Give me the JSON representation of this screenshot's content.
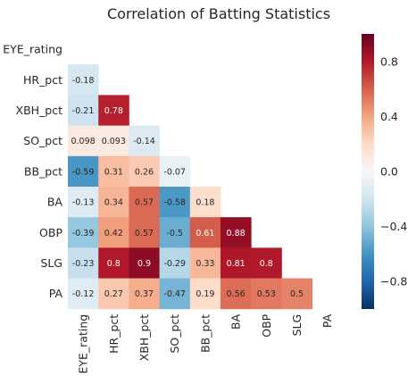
{
  "chart_data": {
    "type": "heatmap",
    "title": "Correlation of Batting Statistics",
    "variables": [
      "EYE_rating",
      "HR_pct",
      "XBH_pct",
      "SO_pct",
      "BB_pct",
      "BA",
      "OBP",
      "SLG",
      "PA"
    ],
    "mask": "upper-triangle-and-diagonal",
    "matrix": [
      [
        null,
        null,
        null,
        null,
        null,
        null,
        null,
        null,
        null
      ],
      [
        -0.18,
        null,
        null,
        null,
        null,
        null,
        null,
        null,
        null
      ],
      [
        -0.21,
        0.78,
        null,
        null,
        null,
        null,
        null,
        null,
        null
      ],
      [
        0.098,
        0.093,
        -0.14,
        null,
        null,
        null,
        null,
        null,
        null
      ],
      [
        -0.59,
        0.31,
        0.26,
        -0.07,
        null,
        null,
        null,
        null,
        null
      ],
      [
        -0.13,
        0.34,
        0.57,
        -0.58,
        0.18,
        null,
        null,
        null,
        null
      ],
      [
        -0.39,
        0.42,
        0.57,
        -0.5,
        0.61,
        0.88,
        null,
        null,
        null
      ],
      [
        -0.23,
        0.8,
        0.9,
        -0.29,
        0.33,
        0.81,
        0.8,
        null,
        null
      ],
      [
        -0.12,
        0.27,
        0.37,
        -0.47,
        0.19,
        0.56,
        0.53,
        0.5,
        null
      ]
    ],
    "colormap": "RdBu_r",
    "vmin": -1.0,
    "vmax": 1.0,
    "colorbar": {
      "position": "right",
      "tick_values": [
        -0.8,
        -0.4,
        0.0,
        0.4,
        0.8
      ],
      "tick_labels": [
        "−0.8",
        "−0.4",
        "0.0",
        "0.4",
        "0.8"
      ]
    },
    "annotations": true
  }
}
